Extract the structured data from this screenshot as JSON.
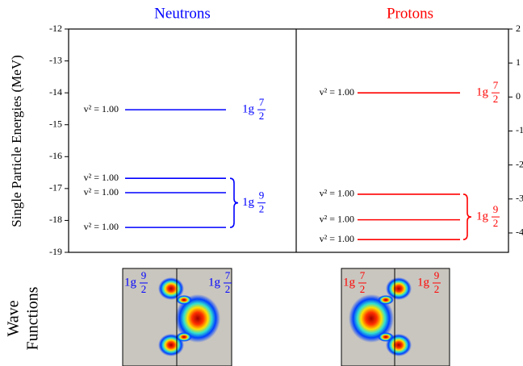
{
  "chart_data": {
    "type": "levels",
    "ylabel": "Single Particle Energies (MeV)",
    "ylim": [
      -19,
      -12
    ],
    "yticks": [
      -12,
      -13,
      -14,
      -15,
      -16,
      -17,
      -18,
      -19
    ],
    "y2lim": [
      -4.57,
      2
    ],
    "y2ticks": [
      2,
      1,
      0,
      -1,
      -2,
      -3,
      -4
    ],
    "panels": [
      {
        "name": "Neutrons",
        "color": "#0000ff",
        "values": [
          -14.53,
          -16.68,
          -17.13,
          -18.22
        ],
        "occupancy_labels": [
          "v² = 1.00",
          "v² = 1.00",
          "v² = 1.00",
          "v² = 1.00"
        ],
        "groups": [
          {
            "orbital": "1g",
            "num": "7",
            "den": "2",
            "levels": [
              0
            ]
          },
          {
            "orbital": "1g",
            "num": "9",
            "den": "2",
            "levels": [
              1,
              2,
              3
            ]
          }
        ]
      },
      {
        "name": "Protons",
        "color": "#ff0000",
        "values": [
          -14.0,
          -17.18,
          -17.98,
          -18.6
        ],
        "occupancy_labels": [
          "v² = 1.00",
          "v² = 1.00",
          "v² = 1.00",
          "v² = 1.00"
        ],
        "groups": [
          {
            "orbital": "1g",
            "num": "7",
            "den": "2",
            "levels": [
              0
            ]
          },
          {
            "orbital": "1g",
            "num": "9",
            "den": "2",
            "levels": [
              1,
              2,
              3
            ]
          }
        ]
      }
    ],
    "wave_label": [
      "Wave",
      "Functions"
    ],
    "wave_functions": [
      {
        "labels": [
          {
            "orbital": "1g",
            "num": "9",
            "den": "2"
          },
          {
            "orbital": "1g",
            "num": "7",
            "den": "2"
          }
        ]
      },
      {
        "labels": [
          {
            "orbital": "1g",
            "num": "7",
            "den": "2"
          },
          {
            "orbital": "1g",
            "num": "9",
            "den": "2"
          }
        ]
      }
    ]
  }
}
